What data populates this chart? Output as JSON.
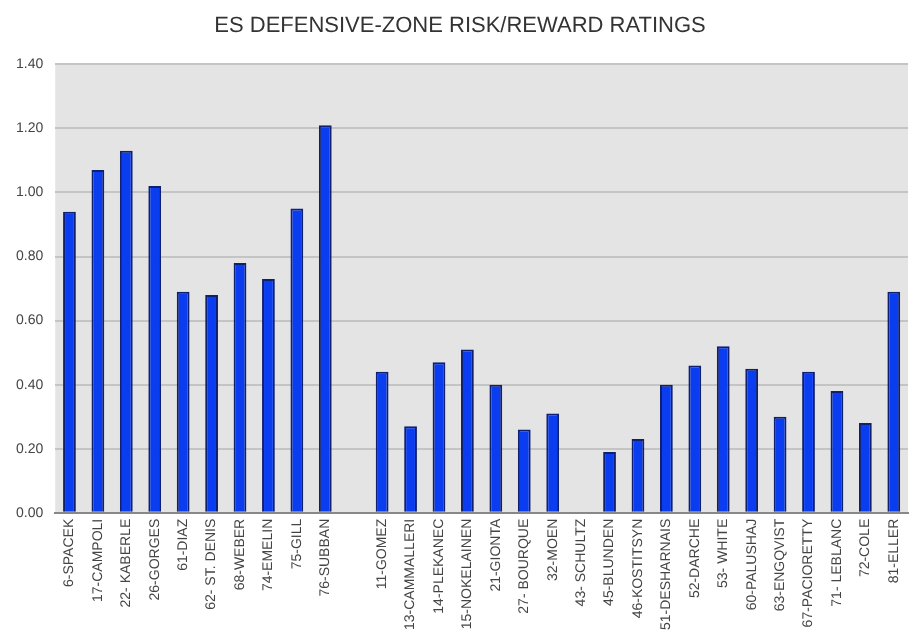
{
  "chart_data": {
    "type": "bar",
    "title": "ES DEFENSIVE-ZONE  RISK/REWARD  RATINGS",
    "categories": [
      "6-SPACEK",
      "17-CAMPOLI",
      "22- KABERLE",
      "26-GORGES",
      "61-DIAZ",
      "62- ST. DENIS",
      "68-WEBER",
      "74-EMELIN",
      "75-GILL",
      "76-SUBBAN",
      null,
      "11-GOMEZ",
      "13-CAMMALLERI",
      "14-PLEKANEC",
      "15-NOKELAINEN",
      "21-GIONTA",
      "27- BOURQUE",
      "32-MOEN",
      "43- SCHULTZ",
      "45-BLUNDEN",
      "46-KOSTITSYN",
      "51-DESHARNAIS",
      "52-DARCHE",
      "53- WHITE",
      "60-PALUSHAJ",
      "63-ENGQVIST",
      "67-PACIORETTY",
      "71- LEBLANC",
      "72-COLE",
      "81-ELLER"
    ],
    "series": [
      {
        "color": "#0a3cf0",
        "values": [
          0.94,
          1.07,
          1.13,
          1.02,
          0.69,
          0.68,
          0.78,
          0.73,
          0.95,
          1.21,
          null,
          0.44,
          0.27,
          0.47,
          0.51,
          0.4,
          0.26,
          0.31,
          null,
          0.19,
          0.23,
          0.4,
          0.46,
          0.52,
          0.45,
          0.3,
          0.44,
          0.38,
          0.28,
          0.69
        ]
      }
    ],
    "ylim": [
      0,
      1.4
    ],
    "yticks": [
      {
        "value": 0,
        "label": "0.00"
      },
      {
        "value": 0.2,
        "label": "0.20"
      },
      {
        "value": 0.4,
        "label": "0.40"
      },
      {
        "value": 0.6,
        "label": "0.60"
      },
      {
        "value": 0.8,
        "label": "0.80"
      },
      {
        "value": 1,
        "label": "1.00"
      },
      {
        "value": 1.2,
        "label": "1.20"
      },
      {
        "value": 1.4,
        "label": "1.40"
      }
    ],
    "grid": "y",
    "legend": false
  }
}
